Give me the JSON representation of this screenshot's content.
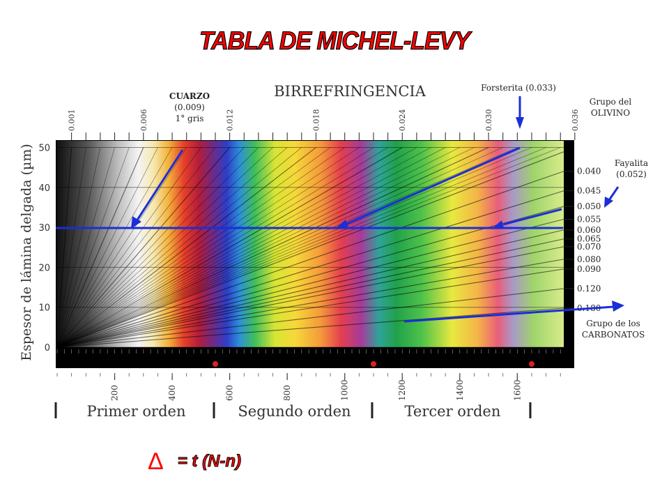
{
  "title": "TABLA DE MICHEL-LEVY",
  "chart_data": {
    "type": "heatmap",
    "title": "BIRREFRINGENCIA",
    "ylabel": "Espesor de lámina delgada  (µm)",
    "xlabel": "",
    "x_ticks": [
      "200",
      "400",
      "600",
      "800",
      "1000",
      "1200",
      "1400",
      "1600"
    ],
    "y_ticks": [
      "0",
      "10",
      "20",
      "30",
      "40",
      "50"
    ],
    "birefringence_top": [
      "0.001",
      "0.006",
      "0.012",
      "0.018",
      "0.024",
      "0.030",
      "0.036"
    ],
    "birefringence_right": [
      "0.040",
      "0.045",
      "0.050",
      "0.055",
      "0.060",
      "0.065",
      "0.070",
      "0.080",
      "0.090",
      "0.120",
      "0.180"
    ],
    "orders": [
      {
        "label": "Primer orden",
        "from": 0,
        "to": 550
      },
      {
        "label": "Segundo orden",
        "from": 550,
        "to": 1100
      },
      {
        "label": "Tercer orden",
        "from": 1100,
        "to": 1650
      }
    ],
    "order_markers": [
      550,
      1100,
      1650
    ],
    "reference_thickness": 30,
    "annotations": {
      "cuarzo": [
        "CUARZO",
        "(0.009)",
        "1° gris"
      ],
      "forsterita": "Forsterita (0.033)",
      "olivino": [
        "Grupo del",
        "OLIVINO"
      ],
      "fayalita": [
        "Fayalita",
        "(0.052)"
      ],
      "carbonatos": [
        "Grupo de los",
        "CARBONATOS"
      ]
    },
    "colors": {
      "primary_line": "#1a2fd6",
      "title_red": "#ff0000",
      "order_marker": "#e02020"
    }
  },
  "formula": "= t (N-n)",
  "delta_symbol": "Δ"
}
